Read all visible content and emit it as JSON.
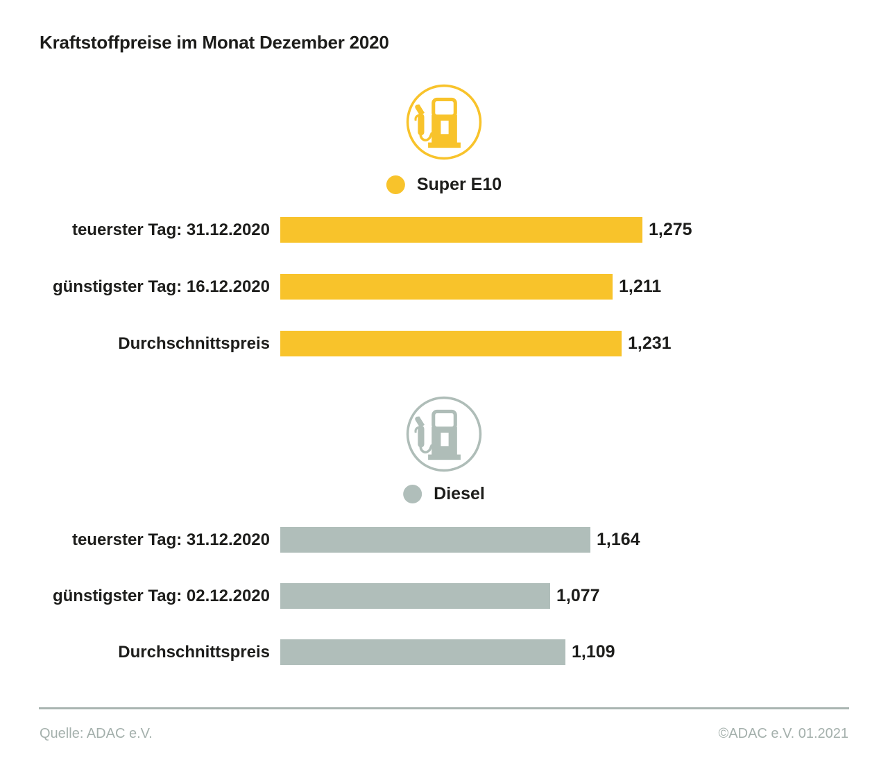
{
  "title": "Kraftstoffpreise im Monat Dezember 2020",
  "colors": {
    "super_e10": "#F8C32B",
    "diesel": "#B0BEBA",
    "diesel_icon": "#AFBDB8",
    "text": "#1D1D1B",
    "footer_gray": "#A4B0AC"
  },
  "icons": {
    "super_pump": "fuel-pump-icon",
    "diesel_pump": "fuel-pump-icon"
  },
  "chart_data": [
    {
      "type": "bar",
      "series_name": "Super E10",
      "color": "#F8C32B",
      "orientation": "horizontal",
      "grid": false,
      "legend_position": "top-center",
      "categories": [
        "teuerster Tag: 31.12.2020",
        "günstigster Tag: 16.12.2020",
        "Durchschnittspreis"
      ],
      "values": [
        1.275,
        1.211,
        1.231
      ],
      "value_labels": [
        "1,275",
        "1,211",
        "1,231"
      ]
    },
    {
      "type": "bar",
      "series_name": "Diesel",
      "color": "#B0BEBA",
      "orientation": "horizontal",
      "grid": false,
      "legend_position": "top-center",
      "categories": [
        "teuerster Tag: 31.12.2020",
        "günstigster Tag: 02.12.2020",
        "Durchschnittspreis"
      ],
      "values": [
        1.164,
        1.077,
        1.109
      ],
      "value_labels": [
        "1,164",
        "1,077",
        "1,109"
      ]
    }
  ],
  "footer": {
    "source": "Quelle: ADAC e.V.",
    "copyright": "©ADAC e.V. 01.2021"
  }
}
